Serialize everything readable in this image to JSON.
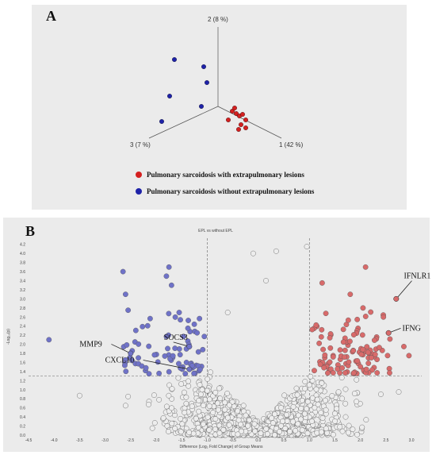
{
  "panel_a": {
    "letter": "A",
    "chart_data": {
      "type": "scatter",
      "axes": [
        "2 (8 %)",
        "1 (42 %)",
        "3 (7 %)"
      ],
      "legend": [
        {
          "label": "Pulmonary sarcoidosis with extrapulmonary lesions",
          "color": "#d42020"
        },
        {
          "label": "Pulmonary sarcoidosis without extrapulmonary lesions",
          "color": "#1e22a8"
        }
      ],
      "series": [
        {
          "name": "Pulmonary sarcoidosis with extrapulmonary lesions",
          "color": "#d42020",
          "count": 10
        },
        {
          "name": "Pulmonary sarcoidosis without extrapulmonary lesions",
          "color": "#1e22a8",
          "count": 6
        }
      ]
    }
  },
  "panel_b": {
    "letter": "B",
    "chart_data": {
      "type": "scatter",
      "title": "EPL vs without EPL",
      "xlabel": "Difference (Log₂ Fold Change) of Group Means",
      "ylabel": "-Log₁₀(p)",
      "xlim": [
        -4.5,
        3.2
      ],
      "ylim": [
        0,
        4.3
      ],
      "xticks": [
        "-4.5",
        "-4.0",
        "-3.5",
        "-3.0",
        "-2.5",
        "-2.0",
        "-1.5",
        "-1.0",
        "-0.5",
        "0.0",
        "0.5",
        "1.0",
        "1.5",
        "2.0",
        "2.5",
        "3.0"
      ],
      "yticks": [
        "0.0",
        "0.2",
        "0.4",
        "0.6",
        "0.8",
        "1.0",
        "1.2",
        "1.4",
        "1.6",
        "1.8",
        "2.0",
        "2.2",
        "2.4",
        "2.6",
        "2.8",
        "3.0",
        "3.2",
        "3.4",
        "3.6",
        "3.8",
        "4.0",
        "4.2"
      ],
      "thresholds": {
        "fold_change": [
          -1.0,
          1.0
        ],
        "p": 1.3
      },
      "colors": {
        "down": "#6f72c8",
        "up": "#d86a6a",
        "ns": "#ededed"
      },
      "annotations": [
        {
          "label": "IFNLR1",
          "x": 2.7,
          "y": 3.0
        },
        {
          "label": "IFNG",
          "x": 2.55,
          "y": 2.25
        },
        {
          "label": "SOCS3",
          "x": -1.35,
          "y": 1.95
        },
        {
          "label": "MMP9",
          "x": -2.5,
          "y": 1.8
        },
        {
          "label": "CXCL10",
          "x": -1.35,
          "y": 1.45
        }
      ]
    }
  }
}
